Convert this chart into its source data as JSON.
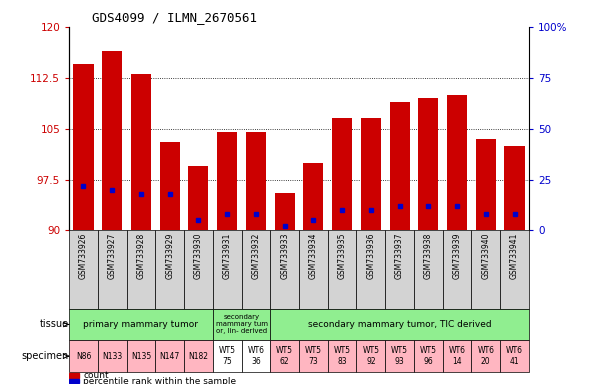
{
  "title": "GDS4099 / ILMN_2670561",
  "samples": [
    "GSM733926",
    "GSM733927",
    "GSM733928",
    "GSM733929",
    "GSM733930",
    "GSM733931",
    "GSM733932",
    "GSM733933",
    "GSM733934",
    "GSM733935",
    "GSM733936",
    "GSM733937",
    "GSM733938",
    "GSM733939",
    "GSM733940",
    "GSM733941"
  ],
  "counts": [
    114.5,
    116.5,
    113.0,
    103.0,
    99.5,
    104.5,
    104.5,
    95.5,
    100.0,
    106.5,
    106.5,
    109.0,
    109.5,
    110.0,
    103.5,
    102.5
  ],
  "percentile_ranks": [
    22,
    20,
    18,
    18,
    5,
    8,
    8,
    2,
    5,
    10,
    10,
    12,
    12,
    12,
    8,
    8
  ],
  "ymin": 90,
  "ymax": 120,
  "yticks": [
    90,
    97.5,
    105,
    112.5,
    120
  ],
  "right_yticks": [
    0,
    25,
    50,
    75,
    100
  ],
  "tissue_groups": [
    {
      "label": "primary mammary tumor",
      "start": 0,
      "end": 4,
      "color": "#90EE90"
    },
    {
      "label": "secondary\nmammary tum\nor, lin- derived",
      "start": 5,
      "end": 6,
      "color": "#90EE90"
    },
    {
      "label": "secondary mammary tumor, TIC derived",
      "start": 7,
      "end": 15,
      "color": "#90EE90"
    }
  ],
  "specimen_labels": [
    "N86",
    "N133",
    "N135",
    "N147",
    "N182",
    "WT5\n75",
    "WT6\n36",
    "WT5\n62",
    "WT5\n73",
    "WT5\n83",
    "WT5\n92",
    "WT5\n93",
    "WT5\n96",
    "WT6\n14",
    "WT6\n20",
    "WT6\n41"
  ],
  "specimen_colors": [
    "#FFB6C1",
    "#FFB6C1",
    "#FFB6C1",
    "#FFB6C1",
    "#FFB6C1",
    "#ffffff",
    "#ffffff",
    "#FFB6C1",
    "#FFB6C1",
    "#FFB6C1",
    "#FFB6C1",
    "#FFB6C1",
    "#FFB6C1",
    "#FFB6C1",
    "#FFB6C1",
    "#FFB6C1"
  ],
  "bar_color": "#cc0000",
  "dot_color": "#0000cc",
  "grid_color": "#000000",
  "tick_bg": "#d3d3d3",
  "left_label_color": "#cc0000",
  "right_label_color": "#0000cc"
}
